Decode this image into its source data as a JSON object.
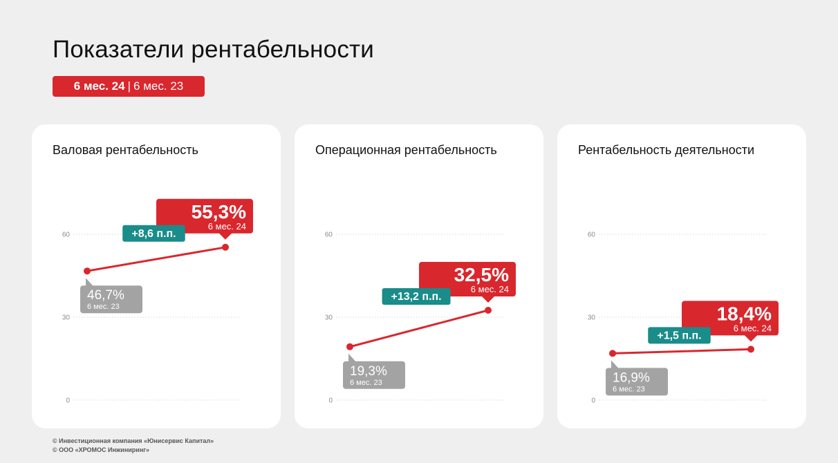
{
  "page": {
    "title": "Показатели рентабельности",
    "period_current": "6 мес. 24",
    "period_separator": "|",
    "period_previous": "6 мес. 23"
  },
  "colors": {
    "accent_red": "#d9272e",
    "delta_teal": "#1a8c8a",
    "prev_gray": "#a3a3a3",
    "background": "#efefef",
    "card": "#ffffff"
  },
  "chart_data": [
    {
      "type": "line",
      "title": "Валовая рентабельность",
      "x": [
        "6 мес. 23",
        "6 мес. 24"
      ],
      "values": [
        46.7,
        55.3
      ],
      "ylim": [
        0,
        60
      ],
      "yticks": [
        "0",
        "30",
        "60"
      ],
      "grid": true,
      "prev_label": "46,7%",
      "prev_sub": "6 мес. 23",
      "cur_label": "55,3%",
      "cur_sub": "6 мес. 24",
      "delta_label": "+8,6 п.п."
    },
    {
      "type": "line",
      "title": "Операционная рентабельность",
      "x": [
        "6 мес. 23",
        "6 мес. 24"
      ],
      "values": [
        19.3,
        32.5
      ],
      "ylim": [
        0,
        60
      ],
      "yticks": [
        "0",
        "30",
        "60"
      ],
      "grid": true,
      "prev_label": "19,3%",
      "prev_sub": "6 мес. 23",
      "cur_label": "32,5%",
      "cur_sub": "6 мес. 24",
      "delta_label": "+13,2 п.п."
    },
    {
      "type": "line",
      "title": "Рентабельность деятельности",
      "x": [
        "6 мес. 23",
        "6 мес. 24"
      ],
      "values": [
        16.9,
        18.4
      ],
      "ylim": [
        0,
        60
      ],
      "yticks": [
        "0",
        "30",
        "60"
      ],
      "grid": true,
      "prev_label": "16,9%",
      "prev_sub": "6 мес. 23",
      "cur_label": "18,4%",
      "cur_sub": "6 мес. 24",
      "delta_label": "+1,5 п.п."
    }
  ],
  "footer": {
    "line1": "© Инвестиционная компания «Юнисервис Капитал»",
    "line2": "© ООО «ХРОМОС Инжиниринг»"
  }
}
